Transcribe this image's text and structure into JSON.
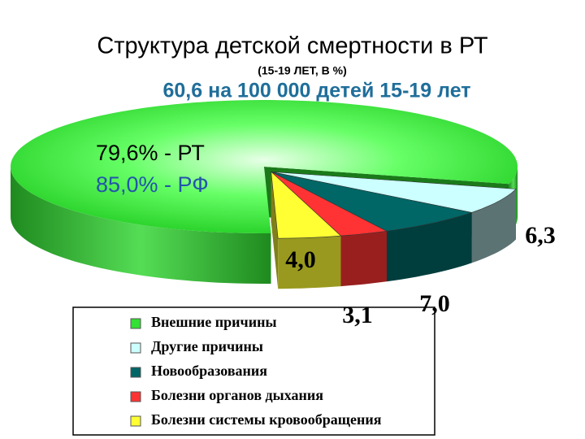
{
  "chart_data": {
    "type": "pie",
    "title": "Структура детской смертности в РТ",
    "subtitle": "(15-19 ЛЕТ, В %)",
    "annotations": [
      "60,6 на 100 000 детей 15-19 лет",
      "85,0% - РФ"
    ],
    "categories": [
      "Внешние причины",
      "Другие причины",
      "Новообразования",
      "Болезни органов дыхания",
      "Болезни системы кровообращения"
    ],
    "values": [
      79.6,
      6.3,
      7.0,
      3.1,
      4.0
    ],
    "value_labels": [
      "79,6% - РТ",
      "6,3",
      "7,0",
      "3,1",
      "4,0"
    ],
    "colors": [
      "#33e033",
      "#ccffff",
      "#006666",
      "#ff3333",
      "#ffff33"
    ],
    "legend": "bottom"
  }
}
